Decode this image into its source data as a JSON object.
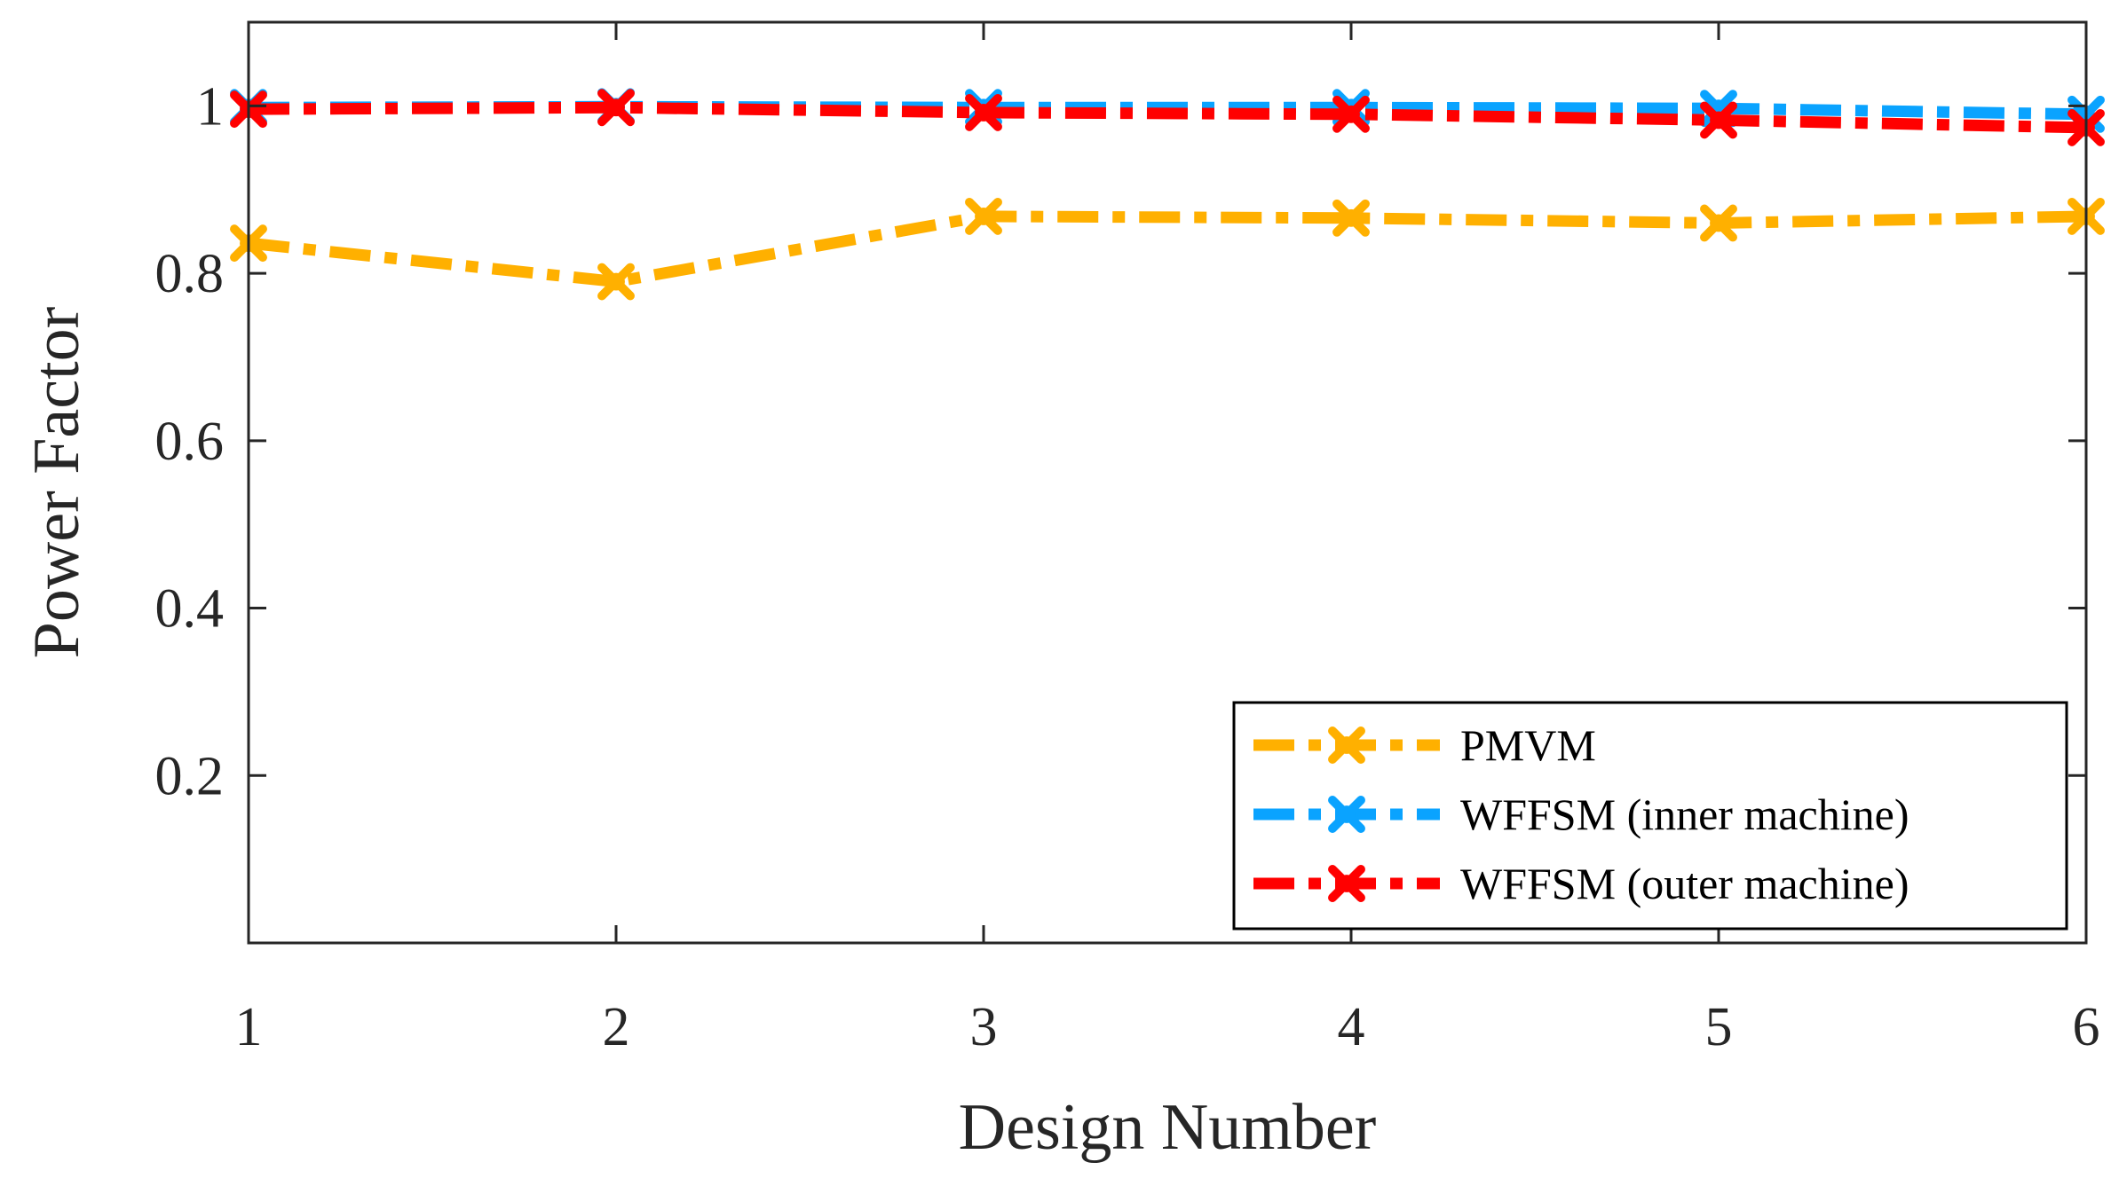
{
  "chart_data": {
    "type": "line",
    "title": "",
    "xlabel": "Design Number",
    "ylabel": "Power Factor",
    "x": [
      1,
      2,
      3,
      4,
      5,
      6
    ],
    "xlim": [
      1,
      6
    ],
    "ylim": [
      0,
      1.1
    ],
    "xticks": [
      "1",
      "2",
      "3",
      "4",
      "5",
      "6"
    ],
    "yticks": [
      {
        "value": 0.2,
        "label": "0.2"
      },
      {
        "value": 0.4,
        "label": "0.4"
      },
      {
        "value": 0.6,
        "label": "0.6"
      },
      {
        "value": 0.8,
        "label": "0.8"
      },
      {
        "value": 1.0,
        "label": "1"
      }
    ],
    "grid": false,
    "legend_position": "bottom-right",
    "series": [
      {
        "name": "PMVM",
        "color": "#ffb000",
        "values": [
          0.836,
          0.79,
          0.868,
          0.866,
          0.86,
          0.868
        ]
      },
      {
        "name": "WFFSM (inner machine)",
        "color": "#0aa3ff",
        "values": [
          0.998,
          0.999,
          0.998,
          0.998,
          0.997,
          0.99
        ]
      },
      {
        "name": "WFFSM (outer machine)",
        "color": "#ff0000",
        "values": [
          0.996,
          0.998,
          0.992,
          0.99,
          0.983,
          0.974
        ]
      }
    ]
  }
}
